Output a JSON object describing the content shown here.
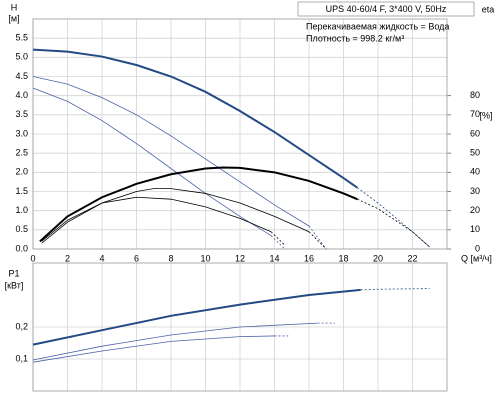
{
  "chart_data": [
    {
      "type": "line",
      "title": "UPS 40-60/4 F, 3*400 V, 50Hz",
      "annotations": [
        "Перекачиваемая жидкость = Вода",
        "Плотность = 998.2 кг/м³"
      ],
      "ylabel": "H",
      "yunit": "[м]",
      "y2label": "eta",
      "y2unit": "[%]",
      "xlabel": "Q [м³/ч]",
      "xlim": [
        0,
        24
      ],
      "xticks": [
        0,
        2,
        4,
        6,
        8,
        10,
        12,
        14,
        16,
        18,
        20,
        22
      ],
      "ylim": [
        0,
        6
      ],
      "yticks": [
        {
          "value": 0,
          "label": "0.0"
        },
        0.5,
        {
          "value": 1,
          "label": "1.0"
        },
        1.5,
        {
          "value": 2,
          "label": "2.0"
        },
        2.5,
        {
          "value": 3,
          "label": "3.0"
        },
        3.5,
        {
          "value": 4,
          "label": "4.0"
        },
        4.5,
        {
          "value": 5,
          "label": "5.0"
        },
        5.5
      ],
      "y2lim": [
        0,
        120
      ],
      "y2ticks": [
        0,
        10,
        20,
        30,
        40,
        50,
        60,
        70,
        80
      ],
      "grid": true,
      "series": [
        {
          "color": "#234a85",
          "thick": true,
          "dashed": false,
          "x": [
            0,
            2,
            4,
            6,
            8,
            10,
            12,
            14,
            16,
            18,
            18.8
          ],
          "values": [
            5.2,
            5.15,
            5.02,
            4.8,
            4.5,
            4.1,
            3.6,
            3.05,
            2.45,
            1.85,
            1.6
          ]
        },
        {
          "color": "#234a85",
          "thick": false,
          "dashed": true,
          "x": [
            18.8,
            20,
            22,
            23
          ],
          "values": [
            1.6,
            1.2,
            0.45,
            0.05
          ]
        },
        {
          "color": "#4a62a8",
          "thick": false,
          "dashed": false,
          "x": [
            0,
            2,
            4,
            6,
            8,
            10,
            12,
            14,
            16
          ],
          "values": [
            4.5,
            4.3,
            3.95,
            3.5,
            2.95,
            2.35,
            1.75,
            1.15,
            0.6
          ]
        },
        {
          "color": "#4a62a8",
          "thick": false,
          "dashed": true,
          "x": [
            16,
            17
          ],
          "values": [
            0.6,
            0
          ]
        },
        {
          "color": "#4a62a8",
          "thick": false,
          "dashed": false,
          "x": [
            0,
            2,
            4,
            6,
            8,
            10,
            12,
            13.8
          ],
          "values": [
            4.2,
            3.85,
            3.35,
            2.75,
            2.1,
            1.45,
            0.85,
            0.35
          ]
        },
        {
          "color": "#4a62a8",
          "thick": false,
          "dashed": true,
          "x": [
            13.8,
            14.6
          ],
          "values": [
            0.35,
            0
          ]
        },
        {
          "axis": "y2",
          "color": "#000000",
          "thick": true,
          "dashed": false,
          "x": [
            0.4,
            2,
            4,
            6,
            8,
            10,
            11,
            12,
            14,
            16,
            18,
            18.8
          ],
          "values": [
            4,
            17,
            27,
            34,
            39,
            42,
            42.5,
            42.3,
            40,
            35.5,
            29,
            26
          ]
        },
        {
          "axis": "y2",
          "color": "#000000",
          "thick": false,
          "dashed": true,
          "x": [
            18.8,
            20,
            22,
            23
          ],
          "values": [
            26,
            21,
            9,
            1
          ]
        },
        {
          "axis": "y2",
          "color": "#000000",
          "thick": false,
          "dashed": false,
          "x": [
            0.5,
            2,
            4,
            6,
            7,
            8,
            10,
            12,
            14,
            16
          ],
          "values": [
            3,
            14,
            24,
            30,
            31.5,
            31.5,
            29,
            24,
            17,
            9
          ]
        },
        {
          "axis": "y2",
          "color": "#000000",
          "thick": false,
          "dashed": true,
          "x": [
            16,
            17
          ],
          "values": [
            9,
            0
          ]
        },
        {
          "axis": "y2",
          "color": "#000000",
          "thick": false,
          "dashed": false,
          "x": [
            0.5,
            2,
            4,
            6,
            8,
            10,
            12,
            13.8
          ],
          "values": [
            4,
            15,
            24,
            27,
            26,
            22,
            16,
            9
          ]
        },
        {
          "axis": "y2",
          "color": "#000000",
          "thick": false,
          "dashed": true,
          "x": [
            13.8,
            14.6
          ],
          "values": [
            9,
            2
          ]
        }
      ]
    },
    {
      "type": "line",
      "ylabel": "P1",
      "yunit": "[кВт]",
      "xlim": [
        0,
        24
      ],
      "ylim": [
        0,
        0.4
      ],
      "yticks": [
        {
          "value": 0.1,
          "label": "0,1"
        },
        {
          "value": 0.2,
          "label": "0,2"
        }
      ],
      "grid": true,
      "series": [
        {
          "color": "#234a85",
          "thick": true,
          "dashed": false,
          "x": [
            0,
            4,
            8,
            12,
            16,
            19
          ],
          "values": [
            0.145,
            0.19,
            0.235,
            0.27,
            0.3,
            0.316
          ]
        },
        {
          "color": "#234a85",
          "thick": false,
          "dashed": true,
          "x": [
            19,
            20,
            23
          ],
          "values": [
            0.316,
            0.318,
            0.32
          ]
        },
        {
          "color": "#4a62a8",
          "thick": false,
          "dashed": false,
          "x": [
            0,
            4,
            8,
            12,
            16.5
          ],
          "values": [
            0.097,
            0.14,
            0.175,
            0.2,
            0.212
          ]
        },
        {
          "color": "#4a62a8",
          "thick": false,
          "dashed": true,
          "x": [
            16.5,
            17.5
          ],
          "values": [
            0.212,
            0.212
          ]
        },
        {
          "color": "#4a62a8",
          "thick": false,
          "dashed": false,
          "x": [
            0,
            4,
            8,
            12,
            14
          ],
          "values": [
            0.09,
            0.125,
            0.155,
            0.17,
            0.172
          ]
        },
        {
          "color": "#4a62a8",
          "thick": false,
          "dashed": true,
          "x": [
            14,
            14.8
          ],
          "values": [
            0.172,
            0.172
          ]
        }
      ]
    }
  ]
}
